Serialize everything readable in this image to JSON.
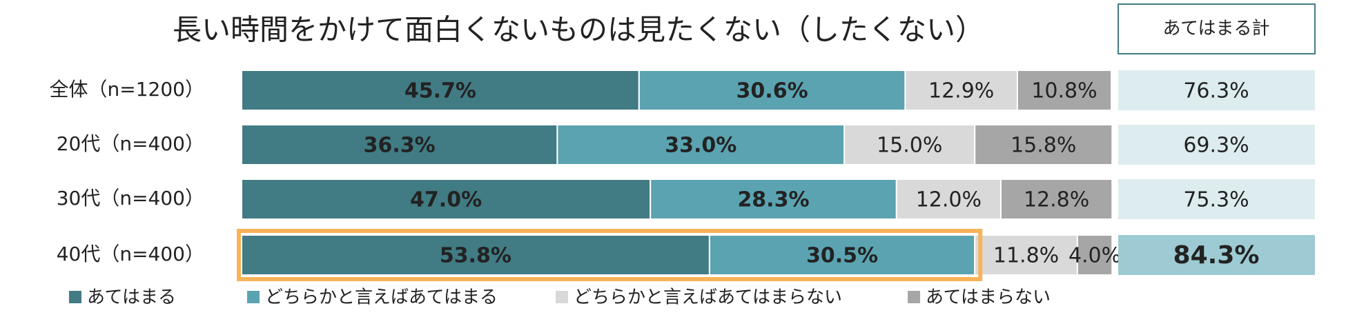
{
  "chart_data": {
    "type": "stacked-bar-horizontal",
    "title": "長い時間をかけて面白くないものは見たくない（したくない）",
    "categories": [
      "全体（n=1200）",
      "20代（n=400）",
      "30代（n=400）",
      "40代（n=400）"
    ],
    "xlim": [
      0,
      100
    ],
    "series": [
      {
        "name": "あてはまる",
        "color": "#417b84",
        "values": [
          45.7,
          36.3,
          47.0,
          53.8
        ],
        "value_labels": [
          "45.7%",
          "36.3%",
          "47.0%",
          "53.8%"
        ]
      },
      {
        "name": "どちらかと言えばあてはまる",
        "color": "#5ba3b0",
        "values": [
          30.6,
          33.0,
          28.3,
          30.5
        ],
        "value_labels": [
          "30.6%",
          "33.0%",
          "28.3%",
          "30.5%"
        ]
      },
      {
        "name": "どちらかと言えばあてはまらない",
        "color": "#d9d9d9",
        "values": [
          12.9,
          15.0,
          12.0,
          11.8
        ],
        "value_labels": [
          "12.9%",
          "15.0%",
          "12.0%",
          "11.8%"
        ]
      },
      {
        "name": "あてはまらない",
        "color": "#a6a6a6",
        "values": [
          10.8,
          15.8,
          12.8,
          4.0
        ],
        "value_labels": [
          "10.8%",
          "15.8%",
          "12.8%",
          "4.0%"
        ]
      }
    ],
    "totals": {
      "title": "あてはまる計",
      "values": [
        76.3,
        69.3,
        75.3,
        84.3
      ],
      "value_labels": [
        "76.3%",
        "69.3%",
        "75.3%",
        "84.3%"
      ]
    },
    "highlight": 3,
    "legend": "bottom"
  }
}
